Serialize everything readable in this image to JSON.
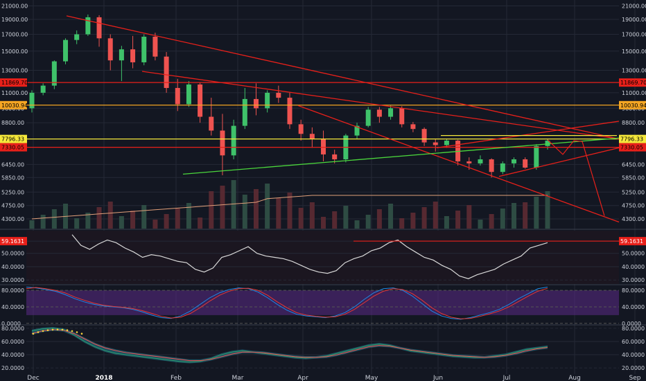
{
  "colors": {
    "background": "#131722",
    "grid": "#242936",
    "axis_text": "#cfd3dc",
    "up": "#26a69a",
    "up_body": "#3fc26a",
    "down": "#ef5350",
    "trendline_red": "#e8201a",
    "trendline_green": "#4bd73c",
    "level_orange": "#f5a623",
    "level_yellow": "#f5e83b",
    "rsi_line": "#d9d9d9",
    "stoch_k": "#1e88e5",
    "stoch_d": "#e53935",
    "stoch_band": "#5b2a86",
    "vol_up": "#2f4f46",
    "vol_down": "#5a2a33",
    "vol_ma": "#e2a07a",
    "osc_fill": "#1f5b6b"
  },
  "chart_data": [
    {
      "type": "candlestick",
      "title": "",
      "x_ticks": [
        "Dec",
        "2018",
        "Feb",
        "Mar",
        "Apr",
        "May",
        "Jun",
        "Jul",
        "Aug",
        "Sep"
      ],
      "y_ticks": [
        "21000.00",
        "19000.00",
        "17000.00",
        "15000.00",
        "13000.00",
        "11000.00",
        "9800.00",
        "8800.00",
        "7800.00",
        "6450.00",
        "5850.00",
        "5250.00",
        "4750.00",
        "4300.00"
      ],
      "ylim": [
        4000,
        21500
      ],
      "y_scale": "log",
      "price_labels": [
        {
          "value": "11869.70",
          "color": "#e8201a"
        },
        {
          "value": "10030.94",
          "color": "#f5a623"
        },
        {
          "value": "7796.33",
          "color": "#f5e83b"
        },
        {
          "value": "7330.05",
          "color": "#e8201a"
        }
      ],
      "weekly_ohlc": [
        [
          9800,
          11200,
          9500,
          11000
        ],
        [
          11000,
          11800,
          10800,
          11600
        ],
        [
          11600,
          14000,
          11300,
          13900
        ],
        [
          13900,
          16500,
          13600,
          16300
        ],
        [
          16300,
          17500,
          15800,
          17000
        ],
        [
          17000,
          19700,
          16800,
          19300
        ],
        [
          19300,
          19600,
          15500,
          16500
        ],
        [
          16500,
          17000,
          13000,
          14000
        ],
        [
          14000,
          15600,
          12000,
          15200
        ],
        [
          15200,
          16800,
          13200,
          13800
        ],
        [
          13800,
          17000,
          13500,
          16700
        ],
        [
          16700,
          17200,
          14000,
          14400
        ],
        [
          14400,
          14900,
          11000,
          11400
        ],
        [
          11400,
          12200,
          9600,
          10100
        ],
        [
          10100,
          12000,
          9900,
          11700
        ],
        [
          11700,
          11900,
          8800,
          9200
        ],
        [
          9200,
          10600,
          8000,
          8300
        ],
        [
          8300,
          9400,
          5950,
          6900
        ],
        [
          6900,
          9000,
          6700,
          8600
        ],
        [
          8600,
          11400,
          8400,
          10500
        ],
        [
          10500,
          11800,
          9300,
          9800
        ],
        [
          9800,
          11200,
          9500,
          11000
        ],
        [
          11000,
          11600,
          10200,
          10600
        ],
        [
          10600,
          11000,
          8400,
          8700
        ],
        [
          8700,
          9000,
          7700,
          8100
        ],
        [
          8100,
          8500,
          7300,
          7800
        ],
        [
          7800,
          8300,
          6600,
          6950
        ],
        [
          6950,
          7200,
          6500,
          6700
        ],
        [
          6700,
          8100,
          6550,
          8000
        ],
        [
          8000,
          8800,
          7800,
          8600
        ],
        [
          8600,
          9900,
          8500,
          9700
        ],
        [
          9700,
          9900,
          8800,
          9200
        ],
        [
          9200,
          10000,
          9000,
          9800
        ],
        [
          9800,
          9950,
          8500,
          8700
        ],
        [
          8700,
          8850,
          8200,
          8400
        ],
        [
          8400,
          8500,
          7400,
          7600
        ],
        [
          7600,
          7800,
          7100,
          7450
        ],
        [
          7450,
          7800,
          7300,
          7700
        ],
        [
          7700,
          7750,
          6400,
          6600
        ],
        [
          6600,
          6800,
          6200,
          6500
        ],
        [
          6500,
          6900,
          6400,
          6700
        ],
        [
          6700,
          6750,
          5850,
          6100
        ],
        [
          6100,
          6600,
          6000,
          6500
        ],
        [
          6500,
          6800,
          6300,
          6700
        ],
        [
          6700,
          6800,
          6250,
          6300
        ],
        [
          6300,
          7500,
          6200,
          7400
        ],
        [
          7400,
          7800,
          7200,
          7700
        ]
      ],
      "indicator_overlay": {
        "volume_ylim": [
          0,
          100
        ],
        "volume_ma": "line"
      }
    },
    {
      "type": "line",
      "title": "",
      "y_ticks": [
        "59.1631",
        "50.0000",
        "40.0000",
        "30.0000"
      ],
      "ylim": [
        27,
        67
      ],
      "price_label": {
        "value": "59.1631",
        "color": "#e8201a"
      },
      "series": [
        {
          "values": [
            64,
            56,
            53,
            57,
            60,
            58,
            54,
            51,
            47,
            49,
            48,
            46,
            44,
            43,
            38,
            36,
            39,
            47,
            49,
            52,
            55,
            50,
            48,
            47,
            46,
            44,
            41,
            38,
            36,
            35,
            37,
            43,
            46,
            48,
            52,
            54,
            58,
            60,
            55,
            51,
            47,
            45,
            41,
            38,
            33,
            31,
            34,
            36,
            38,
            42,
            45,
            48,
            54,
            56,
            58
          ]
        }
      ]
    },
    {
      "type": "line",
      "title": "",
      "y_ticks": [
        "80.0000",
        "40.0000",
        "0.0000"
      ],
      "ylim": [
        -2,
        92
      ],
      "band": [
        20,
        80
      ],
      "series": [
        {
          "values": [
            88,
            86,
            82,
            78,
            70,
            60,
            52,
            46,
            42,
            40,
            38,
            34,
            28,
            20,
            14,
            12,
            18,
            30,
            46,
            62,
            74,
            82,
            86,
            84,
            76,
            62,
            46,
            32,
            22,
            18,
            16,
            14,
            18,
            26,
            40,
            58,
            74,
            84,
            86,
            80,
            66,
            48,
            30,
            18,
            12,
            10,
            14,
            20,
            26,
            34,
            46,
            60,
            72,
            84,
            88
          ]
        },
        {
          "values": [
            84,
            87,
            84,
            80,
            74,
            64,
            56,
            49,
            44,
            41,
            39,
            36,
            31,
            24,
            17,
            13,
            15,
            24,
            38,
            54,
            68,
            78,
            84,
            85,
            80,
            68,
            52,
            38,
            26,
            20,
            17,
            15,
            16,
            22,
            34,
            50,
            66,
            78,
            84,
            82,
            72,
            56,
            38,
            24,
            15,
            11,
            12,
            17,
            23,
            30,
            40,
            53,
            66,
            78,
            85
          ]
        }
      ]
    },
    {
      "type": "area",
      "title": "",
      "y_ticks": [
        "80.0000",
        "60.0000",
        "40.0000",
        "20.0000"
      ],
      "ylim": [
        16,
        84
      ],
      "series": [
        {
          "values": [
            76,
            79,
            80,
            78,
            70,
            60,
            52,
            46,
            42,
            40,
            38,
            36,
            34,
            32,
            30,
            29,
            30,
            34,
            40,
            44,
            46,
            44,
            42,
            40,
            38,
            36,
            35,
            36,
            38,
            42,
            46,
            50,
            54,
            56,
            54,
            50,
            46,
            44,
            42,
            40,
            38,
            37,
            36,
            36,
            38,
            40,
            44,
            48,
            50,
            52
          ]
        },
        {
          "values": [
            72,
            76,
            78,
            77,
            72,
            64,
            56,
            50,
            46,
            43,
            41,
            39,
            37,
            35,
            33,
            31,
            31,
            33,
            37,
            41,
            44,
            44,
            43,
            41,
            39,
            37,
            36,
            36,
            37,
            40,
            44,
            48,
            52,
            54,
            53,
            50,
            47,
            45,
            43,
            41,
            39,
            38,
            37,
            36,
            37,
            39,
            42,
            46,
            49,
            51
          ]
        }
      ]
    }
  ]
}
